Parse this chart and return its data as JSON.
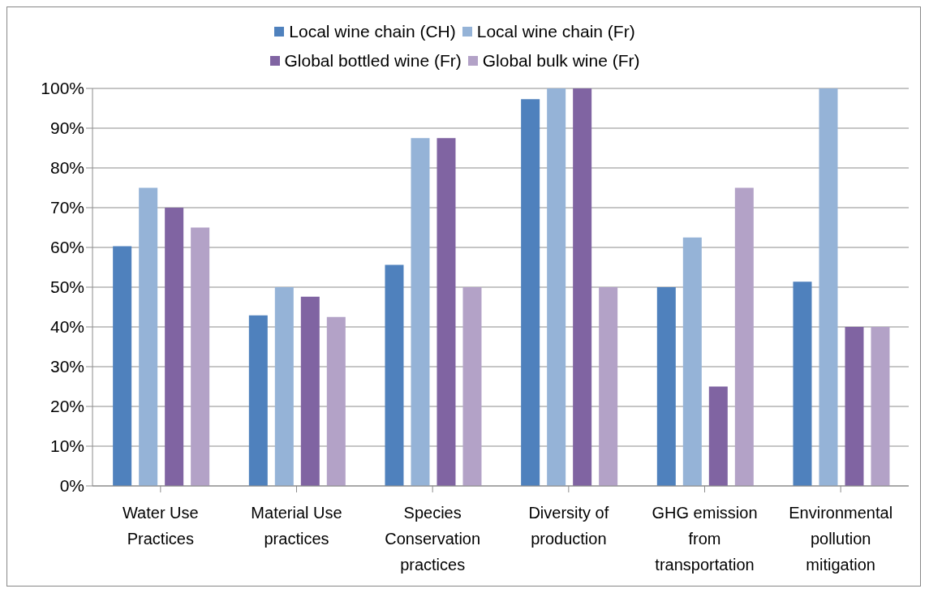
{
  "chart_data": {
    "type": "bar",
    "categories": [
      "Water Use Practices",
      "Material Use practices",
      "Species Conservation practices",
      "Diversity of production",
      "GHG emission from transportation",
      "Environmental pollution mitigation"
    ],
    "series": [
      {
        "name": "Local wine chain (CH)",
        "color": "#4f81bd",
        "values": [
          60.3,
          42.9,
          55.6,
          97.3,
          50,
          51.4
        ]
      },
      {
        "name": "Local wine chain (Fr)",
        "color": "#95b3d7",
        "values": [
          75,
          50,
          87.5,
          100,
          62.5,
          100
        ]
      },
      {
        "name": "Global bottled wine (Fr)",
        "color": "#8064a2",
        "values": [
          70,
          47.6,
          87.5,
          100,
          25,
          40
        ]
      },
      {
        "name": "Global bulk wine (Fr)",
        "color": "#b3a2c7",
        "values": [
          65,
          42.5,
          50,
          50,
          75,
          40
        ]
      }
    ],
    "ylim": [
      0,
      100
    ],
    "yticks": [
      {
        "value": 0,
        "label": "0%"
      },
      {
        "value": 10,
        "label": "10%"
      },
      {
        "value": 20,
        "label": "20%"
      },
      {
        "value": 30,
        "label": "30%"
      },
      {
        "value": 40,
        "label": "40%"
      },
      {
        "value": 50,
        "label": "50%"
      },
      {
        "value": 60,
        "label": "60%"
      },
      {
        "value": 70,
        "label": "70%"
      },
      {
        "value": 80,
        "label": "80%"
      },
      {
        "value": 90,
        "label": "90%"
      },
      {
        "value": 100,
        "label": "100%"
      }
    ],
    "grid": "y",
    "legend": "top"
  }
}
